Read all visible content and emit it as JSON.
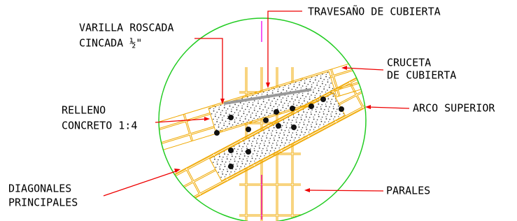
{
  "labels": {
    "travesano": "TRAVESAÑO DE CUBIERTA",
    "varilla": [
      "VARILLA ROSCADA",
      "CINCADA ½\""
    ],
    "cruceta": [
      "CRUCETA",
      "DE CUBIERTA"
    ],
    "arco": "ARCO SUPERIOR",
    "relleno": [
      "RELLENO",
      "CONCRETO 1:4"
    ],
    "diagonales": [
      "DIAGONALES",
      "PRINCIPALES"
    ],
    "parales": "PARALES"
  }
}
